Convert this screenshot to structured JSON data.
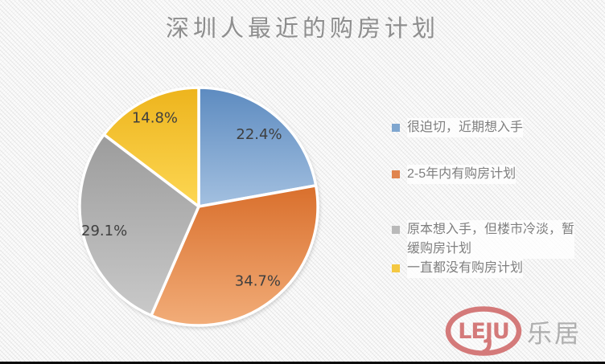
{
  "page": {
    "title": "深圳人最近的购房计划"
  },
  "chart_data": {
    "type": "pie",
    "title": "深圳人最近的购房计划",
    "unit": "%",
    "start_angle_deg": 0,
    "direction": "clockwise",
    "legend_position": "right",
    "grid": false,
    "slices": [
      {
        "label": "很迫切，近期想入手",
        "value": 22.4,
        "data_label": "22.4%",
        "color_top": "#5d8bc0",
        "color_bottom": "#a3c0e0",
        "legend_color": "#7fa6cf"
      },
      {
        "label": "2-5年内有购房计划",
        "value": 34.7,
        "data_label": "34.7%",
        "color_top": "#d96f2c",
        "color_bottom": "#f2ad79",
        "legend_color": "#e0854f"
      },
      {
        "label": "原本想入手，但楼市冷淡，暂缓购房计划",
        "value": 29.1,
        "data_label": "29.1%",
        "color_top": "#9c9c9c",
        "color_bottom": "#c9c9c9",
        "legend_color": "#b9b9b9"
      },
      {
        "label": "一直都没有购房计划",
        "value": 14.8,
        "data_label": "14.8%",
        "color_top": "#edb41d",
        "color_bottom": "#fdd753",
        "legend_color": "#f4c842"
      }
    ],
    "label_color": "#3f3f3f",
    "title_color": "#8e8e8e",
    "legend_text_color": "#7f7f7f"
  },
  "logo": {
    "mark": "LEJU",
    "name": "乐居"
  }
}
